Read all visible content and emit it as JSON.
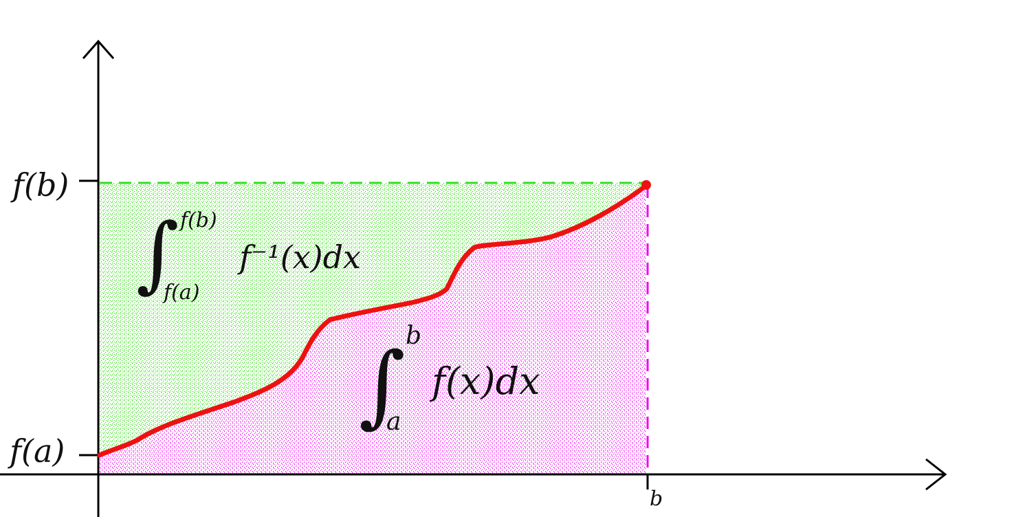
{
  "colors": {
    "axis": "#000000",
    "curve": "#ee1111",
    "upper_region": "#22dd00",
    "lower_region": "#ee00ee",
    "upper_dash": "#33dd22",
    "lower_dash": "#ee00ee"
  },
  "axis_labels": {
    "fb": "f(b)",
    "fa": "f(a)",
    "b": "b"
  },
  "inverse_integral": {
    "upper": "f(b)",
    "lower": "f(a)",
    "integrand": "f⁻¹(x)dx"
  },
  "direct_integral": {
    "upper": "b",
    "lower": "a",
    "integrand": "f(x)dx"
  }
}
